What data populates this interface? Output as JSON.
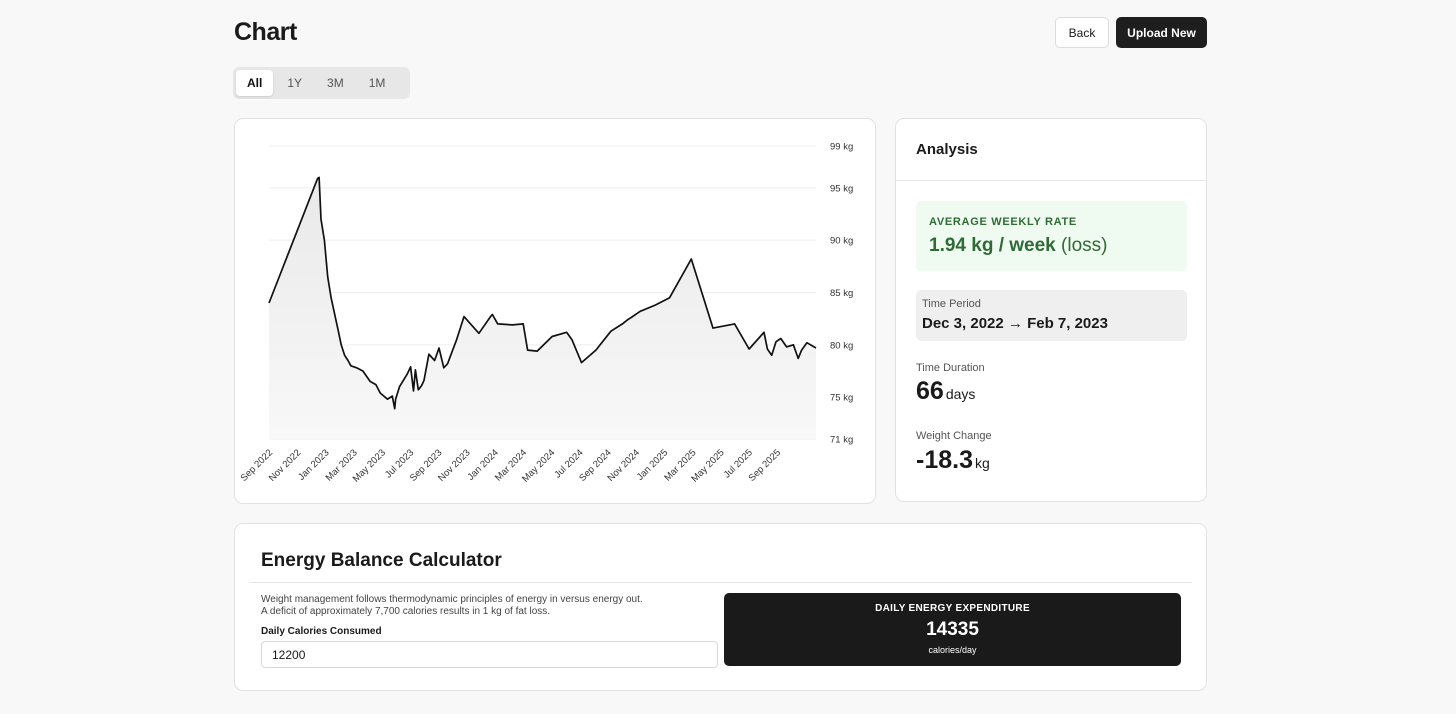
{
  "header": {
    "title": "Chart",
    "back_label": "Back",
    "upload_label": "Upload New"
  },
  "range_tabs": [
    {
      "label": "All",
      "active": true
    },
    {
      "label": "1Y",
      "active": false
    },
    {
      "label": "3M",
      "active": false
    },
    {
      "label": "1M",
      "active": false
    }
  ],
  "chart_data": {
    "type": "area",
    "title": "",
    "xlabel": "",
    "ylabel": "",
    "y_unit": "kg",
    "ylim": [
      71,
      99
    ],
    "y_ticks": [
      99,
      95,
      90,
      85,
      80,
      75,
      71
    ],
    "y_tick_labels": [
      "99 kg",
      "95 kg",
      "90 kg",
      "85 kg",
      "80 kg",
      "75 kg",
      "71 kg"
    ],
    "x_tick_labels": [
      "Sep 2022",
      "Nov 2022",
      "Jan 2023",
      "Mar 2023",
      "May 2023",
      "Jul 2023",
      "Sep 2023",
      "Nov 2023",
      "Jan 2024",
      "Mar 2024",
      "May 2024",
      "Jul 2024",
      "Sep 2024",
      "Nov 2024",
      "Jan 2025",
      "Mar 2025",
      "May 2025",
      "Jul 2025",
      "Sep 2025"
    ],
    "grid": true,
    "colors": {
      "line": "#111111",
      "fill": "#efefef",
      "grid": "#eeeeee"
    },
    "series": [
      {
        "x": [
          "2022-08-22",
          "2022-12-01",
          "2022-12-04",
          "2022-12-08",
          "2022-12-15",
          "2022-12-22",
          "2022-12-29",
          "2023-01-05",
          "2023-01-12",
          "2023-01-19",
          "2023-01-26",
          "2023-02-02",
          "2023-02-08",
          "2023-02-20",
          "2023-03-05",
          "2023-03-20",
          "2023-04-01",
          "2023-04-10",
          "2023-04-25",
          "2023-05-05",
          "2023-05-10",
          "2023-05-12",
          "2023-05-20",
          "2023-06-05",
          "2023-06-12",
          "2023-06-18",
          "2023-06-22",
          "2023-06-28",
          "2023-07-05",
          "2023-07-10",
          "2023-07-20",
          "2023-08-01",
          "2023-08-10",
          "2023-08-20",
          "2023-08-28",
          "2023-09-05",
          "2023-09-15",
          "2023-10-01",
          "2023-11-01",
          "2023-11-25",
          "2023-11-29",
          "2023-12-10",
          "2024-01-10",
          "2024-02-01",
          "2024-02-10",
          "2024-03-01",
          "2024-04-01",
          "2024-05-01",
          "2024-05-12",
          "2024-06-01",
          "2024-07-01",
          "2024-08-01",
          "2024-08-25",
          "2024-09-05",
          "2024-09-15",
          "2024-10-01",
          "2024-11-01",
          "2024-12-01",
          "2025-01-15",
          "2025-03-01",
          "2025-04-15",
          "2025-05-15",
          "2025-06-15",
          "2025-06-22",
          "2025-07-01",
          "2025-07-10",
          "2025-07-20",
          "2025-08-01",
          "2025-08-15",
          "2025-08-25",
          "2025-09-01",
          "2025-09-12",
          "2025-10-01"
        ],
        "values": [
          84.0,
          95.9,
          96.0,
          92.0,
          90.0,
          86.5,
          84.5,
          83.0,
          81.5,
          80.0,
          79.0,
          78.5,
          78.0,
          77.8,
          77.5,
          76.5,
          76.2,
          75.4,
          74.8,
          75.1,
          73.9,
          74.8,
          76.0,
          77.2,
          77.9,
          75.6,
          77.6,
          75.7,
          76.1,
          76.6,
          79.1,
          78.5,
          79.7,
          77.8,
          78.2,
          79.2,
          80.4,
          82.7,
          81.1,
          82.7,
          82.9,
          82.0,
          81.9,
          82.0,
          79.5,
          79.4,
          80.8,
          81.2,
          80.5,
          78.3,
          79.5,
          81.3,
          82.0,
          82.4,
          82.7,
          83.2,
          83.8,
          84.5,
          88.2,
          81.6,
          82.0,
          79.6,
          81.2,
          79.6,
          79.0,
          80.3,
          80.6,
          79.8,
          80.0,
          78.7,
          79.5,
          80.2,
          79.7
        ]
      }
    ]
  },
  "analysis": {
    "title": "Analysis",
    "rate_label": "AVERAGE WEEKLY RATE",
    "rate_value": "1.94 kg / week",
    "rate_suffix": "(loss)",
    "period_label": "Time Period",
    "period_value": "Dec 3, 2022 → Feb 7, 2023",
    "duration_label": "Time Duration",
    "duration_value": "66",
    "duration_unit": "days",
    "change_label": "Weight Change",
    "change_value": "-18.3",
    "change_unit": "kg",
    "colors": {
      "rate_bg": "#effaf0",
      "rate_text": "#2f6b34"
    }
  },
  "energy": {
    "title": "Energy Balance Calculator",
    "desc_line1": "Weight management follows thermodynamic principles of energy in versus energy out.",
    "desc_line2": "A deficit of approximately 7,700 calories results in 1 kg of fat loss.",
    "calories_label": "Daily Calories Consumed",
    "calories_value": "12200",
    "tdee_label": "DAILY ENERGY EXPENDITURE",
    "tdee_value": "14335",
    "tdee_unit": "calories/day"
  }
}
